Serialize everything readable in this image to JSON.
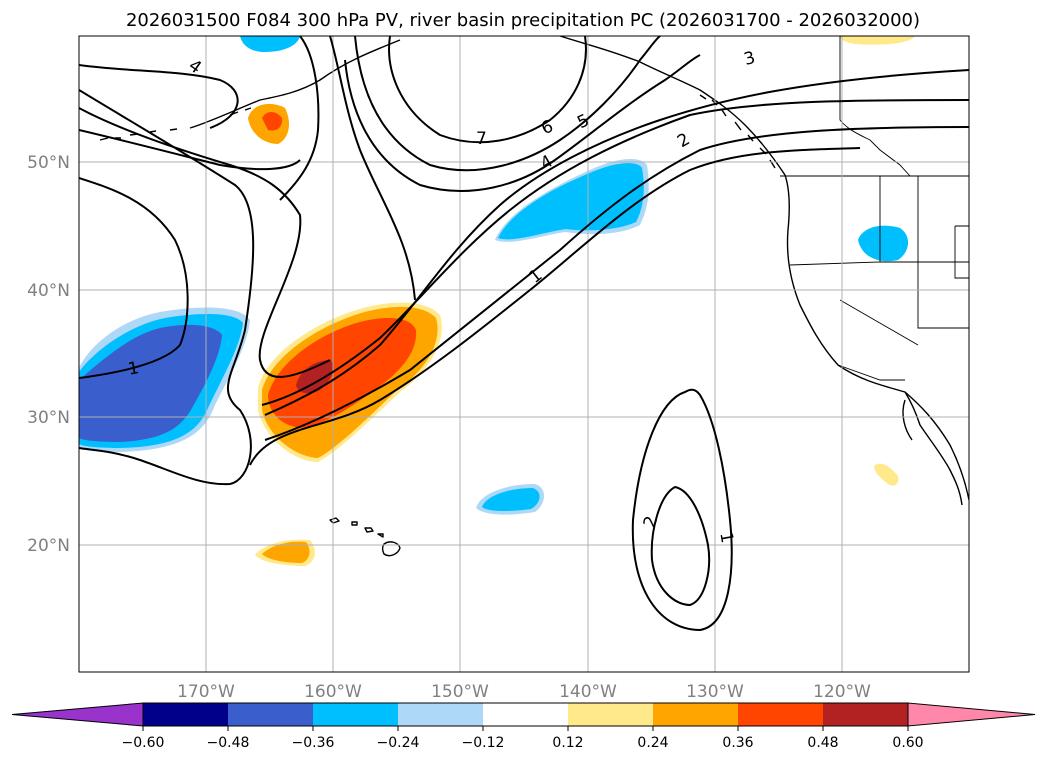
{
  "title": "2026031500 F084 300 hPa PV, river basin precipitation PC (2026031700 - 2026032000)",
  "lon_labels": [
    "170°W",
    "160°W",
    "150°W",
    "140°W",
    "130°W",
    "120°W"
  ],
  "lat_labels": [
    "50°N",
    "40°N",
    "30°N",
    "20°N"
  ],
  "colorbar": {
    "ticks": [
      "−0.60",
      "−0.48",
      "−0.36",
      "−0.24",
      "−0.12",
      "0.12",
      "0.24",
      "0.36",
      "0.48",
      "0.60"
    ],
    "colors": [
      "#9933cc",
      "#00008b",
      "#3a5fcd",
      "#00bfff",
      "#add8f7",
      "#ffffff",
      "#ffe98a",
      "#ffa500",
      "#ff4500",
      "#b22222",
      "#ff88aa"
    ]
  },
  "contour_labels": [
    "4",
    "7",
    "6",
    "5",
    "3",
    "2",
    "4",
    "1",
    "1",
    "2",
    "1"
  ],
  "colors": {
    "frame": "#000000",
    "grid": "#b0b0b0",
    "axis_label": "#808080"
  }
}
